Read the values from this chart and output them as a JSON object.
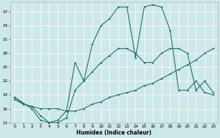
{
  "xlabel": "Humidex (Indice chaleur)",
  "bg_color": "#cce8e8",
  "grid_color": "#ffffff",
  "line_color": "#1a6b6b",
  "xlim": [
    0,
    23
  ],
  "ylim": [
    13,
    39
  ],
  "yticks": [
    13,
    16,
    19,
    22,
    25,
    28,
    31,
    34,
    37
  ],
  "xticks": [
    0,
    1,
    2,
    3,
    4,
    5,
    6,
    7,
    8,
    9,
    10,
    11,
    12,
    13,
    14,
    15,
    16,
    17,
    18,
    19,
    20,
    21,
    22,
    23
  ],
  "line1_x": [
    0,
    1,
    2,
    3,
    4,
    5,
    6,
    7,
    8,
    9,
    10,
    11,
    12,
    13,
    14,
    15,
    16,
    17,
    18,
    19,
    20,
    21,
    22,
    23
  ],
  "line1_y": [
    18.0,
    17.0,
    16.5,
    16.0,
    16.0,
    16.0,
    15.5,
    15.5,
    16.0,
    17.0,
    17.5,
    18.5,
    19.0,
    19.5,
    20.0,
    21.0,
    21.5,
    22.5,
    23.5,
    24.5,
    25.5,
    26.5,
    28.0,
    29.0
  ],
  "line2_x": [
    0,
    1,
    2,
    3,
    4,
    5,
    6,
    7,
    8,
    9,
    10,
    11,
    12,
    13,
    14,
    15,
    16,
    17,
    18,
    19,
    20,
    21,
    22,
    23
  ],
  "line2_y": [
    18.5,
    17.0,
    16.5,
    14.5,
    13.0,
    13.0,
    14.0,
    20.0,
    22.0,
    24.0,
    26.0,
    27.5,
    29.0,
    29.0,
    28.0,
    26.0,
    26.0,
    28.0,
    29.0,
    29.0,
    28.0,
    20.0,
    22.0,
    19.5
  ],
  "line3_x": [
    0,
    2,
    3,
    4,
    5,
    6,
    7,
    8,
    9,
    10,
    11,
    12,
    13,
    14,
    15,
    16,
    17,
    18,
    19,
    20,
    21,
    22,
    23
  ],
  "line3_y": [
    18.5,
    16.0,
    13.5,
    13.0,
    13.5,
    15.5,
    26.0,
    22.0,
    30.0,
    34.0,
    35.5,
    38.0,
    38.0,
    27.0,
    38.0,
    38.5,
    38.0,
    33.0,
    20.0,
    20.0,
    22.0,
    19.5,
    19.0
  ]
}
